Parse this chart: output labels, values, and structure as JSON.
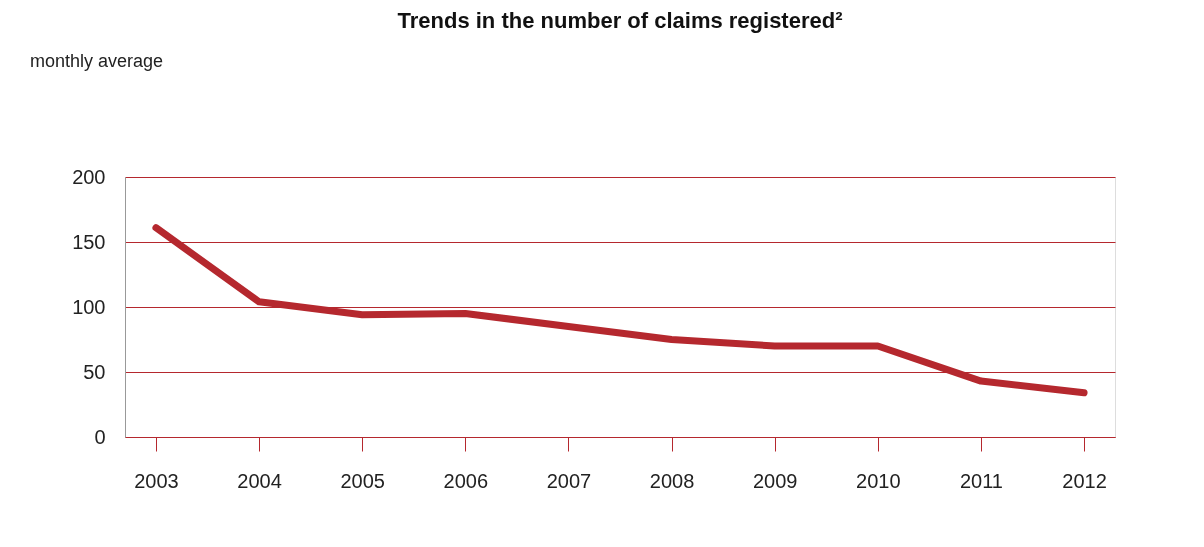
{
  "chart_data": {
    "type": "line",
    "title": "Trends in the number of claims registered²",
    "annotations": [
      "monthly average"
    ],
    "categories": [
      "2003",
      "2004",
      "2005",
      "2006",
      "2007",
      "2008",
      "2009",
      "2010",
      "2011",
      "2012"
    ],
    "series": [
      {
        "color": "#b5282e",
        "values": [
          161,
          104,
          94,
          95,
          85,
          75,
          70,
          70,
          43,
          34
        ]
      }
    ],
    "ylim": [
      0,
      200
    ],
    "yticks": [
      0,
      50,
      100,
      150,
      200
    ],
    "grid": "y",
    "line_style": "solid",
    "marker": "none"
  }
}
